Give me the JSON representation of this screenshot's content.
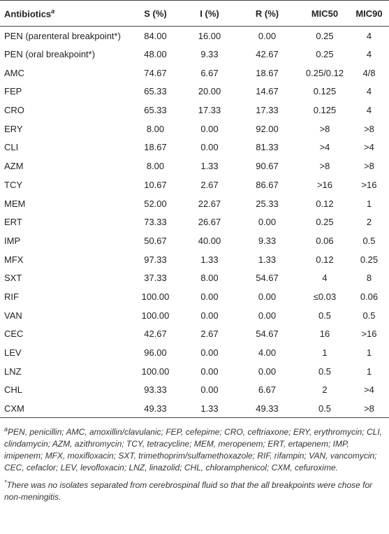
{
  "table": {
    "header": [
      "Antibiotics",
      "S (%)",
      "I (%)",
      "R (%)",
      "MIC50",
      "MIC90"
    ],
    "header_marker": "a",
    "rows": [
      [
        "PEN (parenteral breakpoint*)",
        "84.00",
        "16.00",
        "0.00",
        "0.25",
        "4"
      ],
      [
        "PEN (oral breakpoint*)",
        "48.00",
        "9.33",
        "42.67",
        "0.25",
        "4"
      ],
      [
        "AMC",
        "74.67",
        "6.67",
        "18.67",
        "0.25/0.12",
        "4/8"
      ],
      [
        "FEP",
        "65.33",
        "20.00",
        "14.67",
        "0.125",
        "4"
      ],
      [
        "CRO",
        "65.33",
        "17.33",
        "17.33",
        "0.125",
        "4"
      ],
      [
        "ERY",
        "8.00",
        "0.00",
        "92.00",
        ">8",
        ">8"
      ],
      [
        "CLI",
        "18.67",
        "0.00",
        "81.33",
        ">4",
        ">4"
      ],
      [
        "AZM",
        "8.00",
        "1.33",
        "90.67",
        ">8",
        ">8"
      ],
      [
        "TCY",
        "10.67",
        "2.67",
        "86.67",
        ">16",
        ">16"
      ],
      [
        "MEM",
        "52.00",
        "22.67",
        "25.33",
        "0.12",
        "1"
      ],
      [
        "ERT",
        "73.33",
        "26.67",
        "0.00",
        "0.25",
        "2"
      ],
      [
        "IMP",
        "50.67",
        "40.00",
        "9.33",
        "0.06",
        "0.5"
      ],
      [
        "MFX",
        "97.33",
        "1.33",
        "1.33",
        "0.12",
        "0.25"
      ],
      [
        "SXT",
        "37.33",
        "8.00",
        "54.67",
        "4",
        "8"
      ],
      [
        "RIF",
        "100.00",
        "0.00",
        "0.00",
        "≤0.03",
        "0.06"
      ],
      [
        "VAN",
        "100.00",
        "0.00",
        "0.00",
        "0.5",
        "0.5"
      ],
      [
        "CEC",
        "42.67",
        "2.67",
        "54.67",
        "16",
        ">16"
      ],
      [
        "LEV",
        "96.00",
        "0.00",
        "4.00",
        "1",
        "1"
      ],
      [
        "LNZ",
        "100.00",
        "0.00",
        "0.00",
        "0.5",
        "1"
      ],
      [
        "CHL",
        "93.33",
        "0.00",
        "6.67",
        "2",
        ">4"
      ],
      [
        "CXM",
        "49.33",
        "1.33",
        "49.33",
        "0.5",
        ">8"
      ]
    ]
  },
  "footnotes": [
    {
      "marker": "a",
      "text": "PEN, penicillin; AMC, amoxillin/clavulanic; FEP, cefepime; CRO, ceftriaxone; ERY, erythromycin; CLI, clindamycin; AZM, azithromycin; TCY, tetracycline; MEM, meropenem; ERT, ertapenem; IMP, imipenem; MFX, moxifloxacin; SXT, trimethoprim/sulfamethoxazole; RIF, rifampin; VAN, vancomycin; CEC, cefaclor; LEV, levofloxacin; LNZ, linazolid; CHL, chloramphenicol; CXM, cefuroxime."
    },
    {
      "marker": "*",
      "text": "There was no isolates separated from cerebrospinal fluid so that the all breakpoints were chose for non-meningitis."
    }
  ]
}
